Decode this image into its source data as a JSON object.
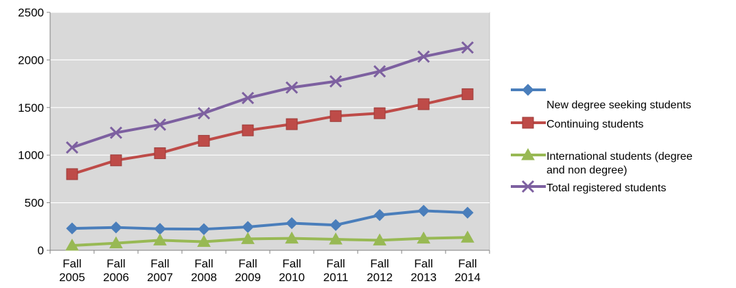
{
  "chart_data": {
    "type": "line",
    "title": "",
    "xlabel": "",
    "ylabel": "",
    "categories": [
      [
        "Fall",
        "2005"
      ],
      [
        "Fall",
        "2006"
      ],
      [
        "Fall",
        "2007"
      ],
      [
        "Fall",
        "2008"
      ],
      [
        "Fall",
        "2009"
      ],
      [
        "Fall",
        "2010"
      ],
      [
        "Fall",
        "2011"
      ],
      [
        "Fall",
        "2012"
      ],
      [
        "Fall",
        "2013"
      ],
      [
        "Fall",
        "2014"
      ]
    ],
    "ylim": [
      0,
      2500
    ],
    "yticks": [
      0,
      500,
      1000,
      1500,
      2000,
      2500
    ],
    "grid": "horizontal",
    "plot_background": "#d9d9d9",
    "legend_position": "right",
    "series": [
      {
        "name": "New degree seeking students",
        "legend_lines": [
          "",
          "New degree seeking students"
        ],
        "marker": "diamond",
        "color": "#4a7ebb",
        "values": [
          230,
          240,
          225,
          222,
          245,
          285,
          265,
          370,
          415,
          395
        ]
      },
      {
        "name": "Continuing students",
        "legend_lines": [
          "Continuing students"
        ],
        "marker": "square",
        "color": "#be4b48",
        "values": [
          800,
          945,
          1020,
          1150,
          1260,
          1325,
          1410,
          1440,
          1535,
          1640
        ]
      },
      {
        "name": "International students (degree and non degree)",
        "legend_lines": [
          "International students (degree",
          "and non degree)"
        ],
        "marker": "triangle",
        "color": "#98b954",
        "values": [
          50,
          75,
          105,
          90,
          120,
          125,
          115,
          105,
          125,
          135
        ]
      },
      {
        "name": "Total registered students",
        "legend_lines": [
          "Total registered students"
        ],
        "marker": "x",
        "color": "#7d60a0",
        "values": [
          1080,
          1235,
          1320,
          1440,
          1600,
          1710,
          1775,
          1880,
          2035,
          2130
        ]
      }
    ]
  }
}
